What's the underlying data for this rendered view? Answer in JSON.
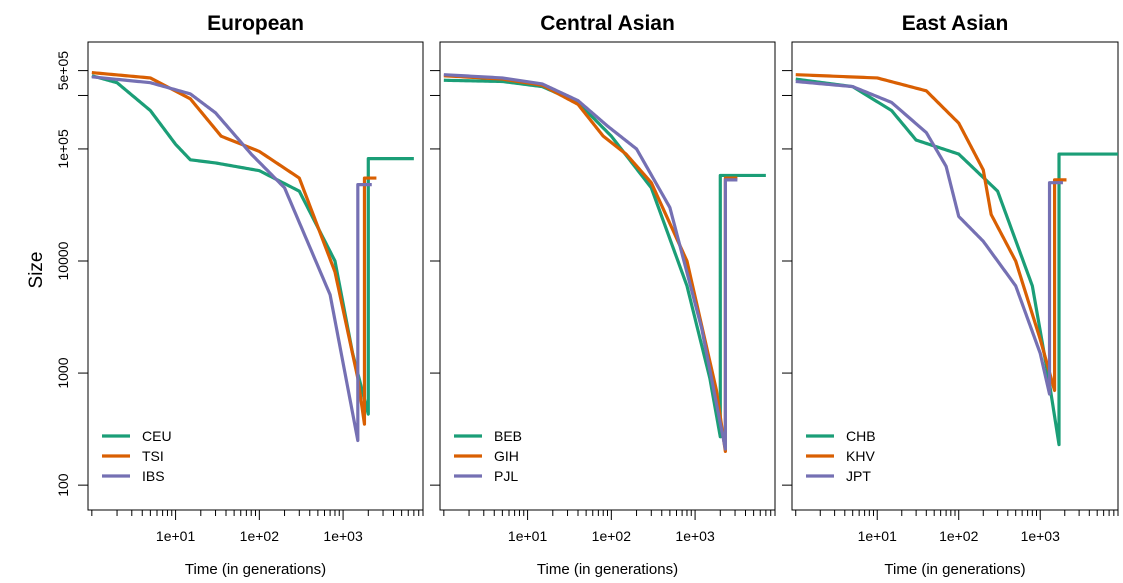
{
  "figure": {
    "ylabel": "Size",
    "line_colors": {
      "green": "#1b9e77",
      "orange": "#d95f02",
      "purple": "#7570b3"
    }
  },
  "chart_data": [
    {
      "type": "line",
      "title": "European",
      "xlabel": "Time (in generations)",
      "ylabel": "Size",
      "xscale": "log",
      "yscale": "log",
      "xlim": [
        0.9,
        9000
      ],
      "ylim": [
        60,
        900000
      ],
      "x_ticks": [
        10,
        100,
        1000
      ],
      "x_tick_labels": [
        "1e+01",
        "1e+02",
        "1e+03"
      ],
      "y_ticks": [
        100,
        1000,
        10000,
        100000,
        500000
      ],
      "y_tick_labels": [
        "100",
        "1000",
        "10000",
        "1e+05",
        "5e+05"
      ],
      "legend_position": "bottom-left",
      "series": [
        {
          "name": "CEU",
          "color": "#1b9e77",
          "x": [
            1,
            2,
            5,
            10,
            15,
            30,
            100,
            300,
            800,
            1300,
            2000,
            2000,
            7000
          ],
          "y": [
            450000,
            390000,
            220000,
            110000,
            80000,
            75000,
            64000,
            42000,
            10000,
            1500,
            430,
            82000,
            82000
          ]
        },
        {
          "name": "TSI",
          "color": "#d95f02",
          "x": [
            1,
            5,
            15,
            35,
            100,
            300,
            800,
            1500,
            1800,
            1800,
            2500
          ],
          "y": [
            480000,
            430000,
            280000,
            130000,
            95000,
            55000,
            8000,
            900,
            350,
            55000,
            55000
          ]
        },
        {
          "name": "IBS",
          "color": "#7570b3",
          "x": [
            1,
            5,
            15,
            30,
            80,
            200,
            700,
            1500,
            1500,
            2200
          ],
          "y": [
            440000,
            390000,
            310000,
            210000,
            90000,
            45000,
            5000,
            250,
            48000,
            48000
          ]
        }
      ]
    },
    {
      "type": "line",
      "title": "Central Asian",
      "xlabel": "Time (in generations)",
      "xscale": "log",
      "yscale": "log",
      "xlim": [
        0.9,
        9000
      ],
      "ylim": [
        60,
        900000
      ],
      "x_ticks": [
        10,
        100,
        1000
      ],
      "x_tick_labels": [
        "1e+01",
        "1e+02",
        "1e+03"
      ],
      "legend_position": "bottom-left",
      "series": [
        {
          "name": "BEB",
          "color": "#1b9e77",
          "x": [
            1,
            5,
            15,
            40,
            100,
            300,
            800,
            1500,
            2000,
            2000,
            7000
          ],
          "y": [
            410000,
            400000,
            360000,
            260000,
            130000,
            45000,
            6000,
            900,
            270,
            58000,
            58000
          ]
        },
        {
          "name": "GIH",
          "color": "#d95f02",
          "x": [
            1,
            5,
            15,
            40,
            80,
            150,
            300,
            800,
            1800,
            2300,
            2300,
            3200
          ],
          "y": [
            450000,
            420000,
            370000,
            250000,
            130000,
            90000,
            50000,
            10000,
            700,
            200,
            55000,
            55000
          ]
        },
        {
          "name": "PJL",
          "color": "#7570b3",
          "x": [
            1,
            5,
            15,
            40,
            90,
            200,
            500,
            1200,
            2300,
            2300,
            3200
          ],
          "y": [
            460000,
            430000,
            380000,
            270000,
            160000,
            100000,
            30000,
            2500,
            210,
            53000,
            53000
          ]
        }
      ]
    },
    {
      "type": "line",
      "title": "East Asian",
      "xlabel": "Time (in generations)",
      "xscale": "log",
      "yscale": "log",
      "xlim": [
        0.9,
        9000
      ],
      "ylim": [
        60,
        900000
      ],
      "x_ticks": [
        10,
        100,
        1000
      ],
      "x_tick_labels": [
        "1e+01",
        "1e+02",
        "1e+03"
      ],
      "legend_position": "bottom-left",
      "series": [
        {
          "name": "CHB",
          "color": "#1b9e77",
          "x": [
            1,
            5,
            15,
            30,
            100,
            300,
            800,
            1300,
            1700,
            1700,
            9000
          ],
          "y": [
            420000,
            360000,
            220000,
            120000,
            90000,
            42000,
            6000,
            800,
            230,
            90000,
            90000
          ]
        },
        {
          "name": "KHV",
          "color": "#d95f02",
          "x": [
            1,
            10,
            40,
            100,
            200,
            250,
            500,
            1000,
            1500,
            1500,
            2100
          ],
          "y": [
            460000,
            430000,
            330000,
            170000,
            65000,
            26000,
            10000,
            2000,
            700,
            53000,
            53000
          ]
        },
        {
          "name": "JPT",
          "color": "#7570b3",
          "x": [
            1,
            5,
            15,
            40,
            70,
            100,
            200,
            500,
            1000,
            1300,
            1300,
            1900
          ],
          "y": [
            400000,
            360000,
            260000,
            140000,
            70000,
            25000,
            15000,
            6000,
            1500,
            650,
            50000,
            50000
          ]
        }
      ]
    }
  ]
}
